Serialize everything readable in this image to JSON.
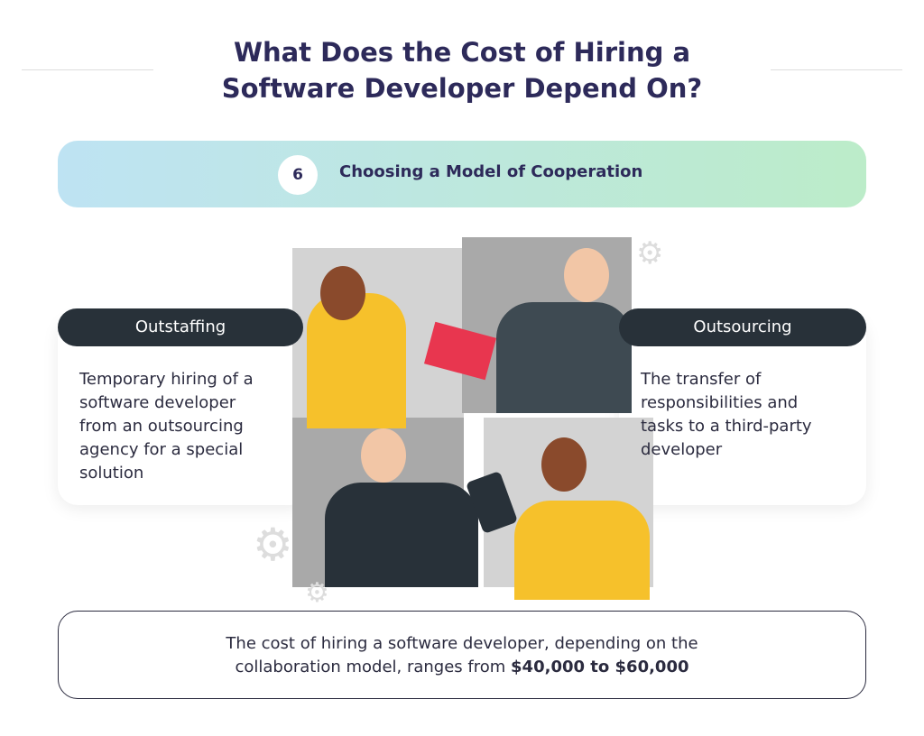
{
  "header": {
    "title_line1": "What Does the Cost of Hiring a",
    "title_line2": "Software Developer Depend On?"
  },
  "banner": {
    "number": "6",
    "title": "Choosing a Model of Cooperation"
  },
  "left_card": {
    "label": "Outstaffing",
    "text": "Temporary hiring of a software developer from an outsourcing agency for a special solution"
  },
  "right_card": {
    "label": "Outsourcing",
    "text": "The transfer of responsibilities and tasks to a third-party developer"
  },
  "footer": {
    "text": "The cost of hiring a software developer, depending on the collaboration model, ranges from ",
    "highlight": "$40,000 to $60,000"
  },
  "colors": {
    "title": "#2d2a5a",
    "pill": "#283139",
    "banner_start": "#bee3f3",
    "banner_end": "#bcecc9",
    "accent_yellow": "#f6c12b",
    "accent_red": "#e8364f"
  }
}
